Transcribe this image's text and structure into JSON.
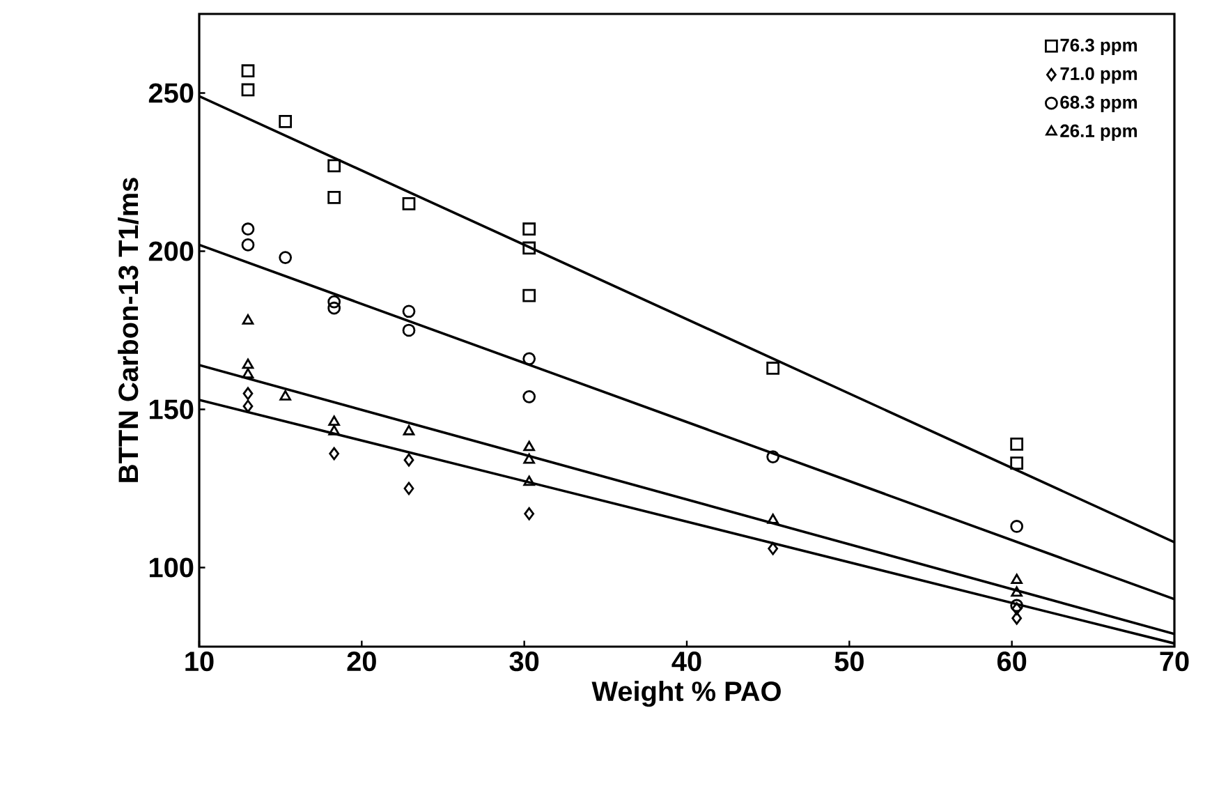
{
  "chart_data": {
    "type": "scatter",
    "xlabel": "Weight % PAO",
    "ylabel": "BTTN Carbon-13 T1/ms",
    "xlim": [
      10,
      70
    ],
    "ylim": [
      75,
      275
    ],
    "xticks": [
      10,
      20,
      30,
      40,
      50,
      60,
      70
    ],
    "yticks": [
      100,
      150,
      200,
      250
    ],
    "legend": "top right",
    "grid": false,
    "series": [
      {
        "name": "76.3 ppm",
        "color": "#000000",
        "marker": "square",
        "x": [
          13,
          13,
          15.3,
          18.3,
          18.3,
          22.9,
          30.3,
          30.3,
          30.3,
          45.3,
          60.3,
          60.3
        ],
        "values": [
          257,
          251,
          241,
          227,
          217,
          215,
          207,
          201,
          186,
          163,
          139,
          133
        ]
      },
      {
        "name": "71.0 ppm",
        "color": "#000000",
        "marker": "diamond",
        "x": [
          13,
          13,
          18.3,
          22.9,
          22.9,
          30.3,
          45.3,
          60.3,
          60.3
        ],
        "values": [
          155,
          151,
          136,
          134,
          125,
          117,
          106,
          87,
          84
        ]
      },
      {
        "name": "68.3 ppm",
        "color": "#000000",
        "marker": "circle",
        "x": [
          13,
          13,
          15.3,
          18.3,
          18.3,
          22.9,
          22.9,
          30.3,
          30.3,
          45.3,
          60.3,
          60.3
        ],
        "values": [
          207,
          202,
          198,
          184,
          182,
          181,
          175,
          166,
          154,
          135,
          113,
          88
        ]
      },
      {
        "name": "26.1 ppm",
        "color": "#000000",
        "marker": "triangle",
        "x": [
          13,
          13,
          13,
          15.3,
          18.3,
          18.3,
          22.9,
          30.3,
          30.3,
          30.3,
          45.3,
          60.3,
          60.3
        ],
        "values": [
          178,
          164,
          161,
          154,
          146,
          143,
          143,
          138,
          134,
          127,
          115,
          96,
          92
        ]
      },
      {
        "type": "line",
        "color": "#000000",
        "marker": "none",
        "x": [
          10,
          70
        ],
        "values": [
          249,
          108
        ]
      },
      {
        "type": "line",
        "color": "#000000",
        "marker": "none",
        "x": [
          10,
          70
        ],
        "values": [
          202,
          90
        ]
      },
      {
        "type": "line",
        "color": "#000000",
        "marker": "none",
        "x": [
          10,
          70
        ],
        "values": [
          164,
          79
        ]
      },
      {
        "type": "line",
        "color": "#000000",
        "marker": "none",
        "x": [
          10,
          70
        ],
        "values": [
          153,
          76
        ]
      }
    ]
  }
}
